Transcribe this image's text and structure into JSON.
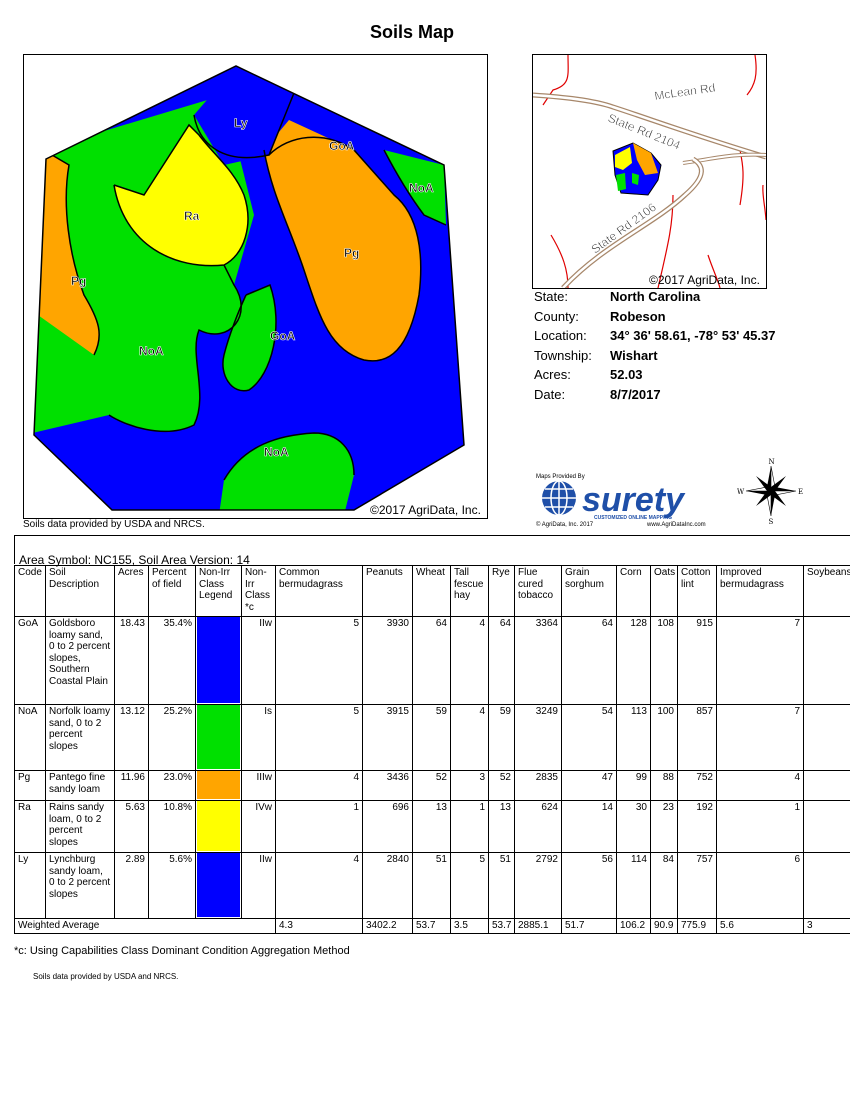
{
  "title": "Soils Map",
  "main_map": {
    "copyright": "©2017 AgriData, Inc.",
    "labels": [
      "Ly",
      "GoA",
      "NoA",
      "Ra",
      "Pg",
      "Pg",
      "NoA",
      "GoA",
      "NoA"
    ]
  },
  "data_source_note": "Soils data provided by USDA and NRCS.",
  "inset_map": {
    "copyright": "©2017 AgriData, Inc.",
    "road_labels": [
      "McLean Rd",
      "State Rd 2104",
      "State Rd 2106"
    ]
  },
  "info": [
    {
      "label": "State:",
      "value": "North Carolina"
    },
    {
      "label": "County:",
      "value": "Robeson"
    },
    {
      "label": "Location:",
      "value": "34° 36' 58.61,  -78° 53' 45.37"
    },
    {
      "label": "Township:",
      "value": "Wishart"
    },
    {
      "label": "Acres:",
      "value": "52.03"
    },
    {
      "label": "Date:",
      "value": "8/7/2017"
    }
  ],
  "logo": {
    "provided_by": "Maps Provided By",
    "brand": "surety",
    "tagline": "CUSTOMIZED ONLINE MAPPING",
    "left": "© AgriData, Inc. 2017",
    "right": "www.AgriDataInc.com"
  },
  "compass": {
    "n": "N",
    "s": "S",
    "e": "E",
    "w": "W"
  },
  "colors": {
    "blue": "#0000ff",
    "green": "#00e000",
    "orange": "#ffa500",
    "yellow": "#ffff00"
  },
  "table": {
    "area_symbol": "Area Symbol: NC155, Soil Area Version: 14",
    "headers": [
      "Code",
      "Soil Description",
      "Acres",
      "Percent of field",
      "Non-Irr Class Legend",
      "Non-Irr Class *c",
      "Common bermudagrass",
      "Peanuts",
      "Wheat",
      "Tall fescue hay",
      "Rye",
      "Flue cured tobacco",
      "Grain sorghum",
      "Corn",
      "Oats",
      "Cotton lint",
      "Improved bermudagrass",
      "Soybeans"
    ],
    "rows": [
      {
        "code": "GoA",
        "desc": "Goldsboro loamy sand, 0 to 2 percent slopes, Southern Coastal Plain",
        "acres": "18.43",
        "pct": "35.4%",
        "color": "#0000ff",
        "cls": "IIw",
        "vals": [
          "5",
          "3930",
          "64",
          "4",
          "64",
          "3364",
          "64",
          "128",
          "108",
          "915",
          "7",
          ""
        ]
      },
      {
        "code": "NoA",
        "desc": "Norfolk loamy sand, 0 to 2 percent slopes",
        "acres": "13.12",
        "pct": "25.2%",
        "color": "#00e000",
        "cls": "Is",
        "vals": [
          "5",
          "3915",
          "59",
          "4",
          "59",
          "3249",
          "54",
          "113",
          "100",
          "857",
          "7",
          ""
        ]
      },
      {
        "code": "Pg",
        "desc": "Pantego fine sandy loam",
        "acres": "11.96",
        "pct": "23.0%",
        "color": "#ffa500",
        "cls": "IIIw",
        "vals": [
          "4",
          "3436",
          "52",
          "3",
          "52",
          "2835",
          "47",
          "99",
          "88",
          "752",
          "4",
          ""
        ]
      },
      {
        "code": "Ra",
        "desc": "Rains sandy loam, 0 to 2 percent slopes",
        "acres": "5.63",
        "pct": "10.8%",
        "color": "#ffff00",
        "cls": "IVw",
        "vals": [
          "1",
          "696",
          "13",
          "1",
          "13",
          "624",
          "14",
          "30",
          "23",
          "192",
          "1",
          ""
        ]
      },
      {
        "code": "Ly",
        "desc": "Lynchburg sandy loam, 0 to 2 percent slopes",
        "acres": "2.89",
        "pct": "5.6%",
        "color": "#0000ff",
        "cls": "IIw",
        "vals": [
          "4",
          "2840",
          "51",
          "5",
          "51",
          "2792",
          "56",
          "114",
          "84",
          "757",
          "6",
          ""
        ]
      }
    ],
    "weighted_label": "Weighted Average",
    "weighted": [
      "4.3",
      "3402.2",
      "53.7",
      "3.5",
      "53.7",
      "2885.1",
      "51.7",
      "106.2",
      "90.9",
      "775.9",
      "5.6",
      "3"
    ]
  },
  "footnote": "*c:  Using Capabilities Class Dominant Condition Aggregation Method",
  "footer_note": "Soils data provided by USDA and NRCS."
}
